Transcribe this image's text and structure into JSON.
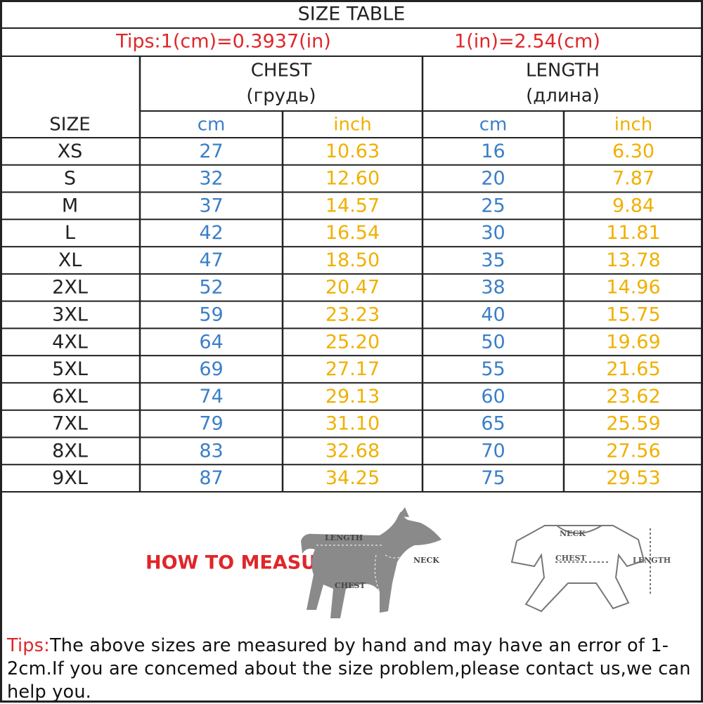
{
  "header": {
    "title": "SIZE TABLE",
    "tips": [
      "Tips:1(cm)=0.3937(in)",
      "1(in)=2.54(cm)"
    ]
  },
  "table": {
    "groups": [
      {
        "name": "CHEST",
        "translation": "(грудь)"
      },
      {
        "name": "LENGTH",
        "translation": "(длина)"
      }
    ],
    "columns": [
      "SIZE",
      "cm",
      "inch",
      "cm",
      "inch"
    ],
    "rows": [
      [
        "XS",
        "27",
        "10.63",
        "16",
        "6.30"
      ],
      [
        "S",
        "32",
        "12.60",
        "20",
        "7.87"
      ],
      [
        "M",
        "37",
        "14.57",
        "25",
        "9.84"
      ],
      [
        "L",
        "42",
        "16.54",
        "30",
        "11.81"
      ],
      [
        "XL",
        "47",
        "18.50",
        "35",
        "13.78"
      ],
      [
        "2XL",
        "52",
        "20.47",
        "38",
        "14.96"
      ],
      [
        "3XL",
        "59",
        "23.23",
        "40",
        "15.75"
      ],
      [
        "4XL",
        "64",
        "25.20",
        "50",
        "19.69"
      ],
      [
        "5XL",
        "69",
        "27.17",
        "55",
        "21.65"
      ],
      [
        "6XL",
        "74",
        "29.13",
        "60",
        "23.62"
      ],
      [
        "7XL",
        "79",
        "31.10",
        "65",
        "25.59"
      ],
      [
        "8XL",
        "83",
        "32.68",
        "70",
        "27.56"
      ],
      [
        "9XL",
        "87",
        "34.25",
        "75",
        "29.53"
      ]
    ]
  },
  "measure": {
    "heading": "HOW TO MEASURE",
    "dog_labels": [
      "LENGTH",
      "NECK",
      "CHEST"
    ],
    "clothes_labels": [
      "NECK",
      "CHEST",
      "LENGTH"
    ]
  },
  "footer": {
    "label": "Tips:",
    "text": "The above sizes are measured by hand and may have an error of 1-2cm.If you are concemed about the size problem,please contact us,we can help you."
  }
}
